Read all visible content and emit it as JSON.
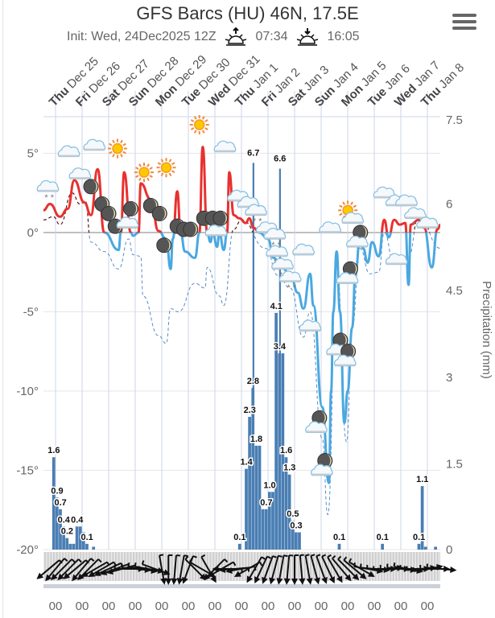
{
  "header": {
    "title": "GFS Barcs (HU) 46N, 17.5E",
    "init": "Init: Wed, 24Dec2025 12Z",
    "sunrise": "07:34",
    "sunset": "16:05",
    "sunrise_icon": "sunrise-icon",
    "sunset_icon": "sunset-icon",
    "menu_icon": "hamburger-menu-icon"
  },
  "chart_data": {
    "type": "line",
    "title": "GFS Barcs (HU) 46N, 17.5E",
    "subtitle": "Init: Wed, 24Dec2025 12Z",
    "x_axis": {
      "days": [
        {
          "wd": "Thu",
          "date": "Dec 25"
        },
        {
          "wd": "Fri",
          "date": "Dec 26"
        },
        {
          "wd": "Sat",
          "date": "Dec 27"
        },
        {
          "wd": "Sun",
          "date": "Dec 28"
        },
        {
          "wd": "Mon",
          "date": "Dec 29"
        },
        {
          "wd": "Tue",
          "date": "Dec 30"
        },
        {
          "wd": "Wed",
          "date": "Dec 31"
        },
        {
          "wd": "Thu",
          "date": "Jan 1"
        },
        {
          "wd": "Fri",
          "date": "Jan 2"
        },
        {
          "wd": "Sat",
          "date": "Jan 3"
        },
        {
          "wd": "Sun",
          "date": "Jan 4"
        },
        {
          "wd": "Mon",
          "date": "Jan 5"
        },
        {
          "wd": "Tue",
          "date": "Jan 6"
        },
        {
          "wd": "Wed",
          "date": "Jan 7"
        },
        {
          "wd": "Thu",
          "date": "Jan 8"
        }
      ],
      "hour_label": "00",
      "range": [
        "2025-12-24T13",
        "2026-01-08T12"
      ]
    },
    "y_left": {
      "ticks": [
        "5°",
        "0°",
        "-5°",
        "-10°",
        "-15°",
        "-20°"
      ],
      "values": [
        5,
        0,
        -5,
        -10,
        -15,
        -20
      ],
      "range": [
        -20,
        7.5
      ]
    },
    "y_right": {
      "title": "Precipitation (mm)",
      "ticks": [
        "7.5",
        "6",
        "4.5",
        "3",
        "1.5",
        "0"
      ],
      "values": [
        7.5,
        6,
        4.5,
        3,
        1.5,
        0
      ],
      "range": [
        0,
        7.5
      ]
    },
    "colors": {
      "temp_above_zero": "#e8312f",
      "temp_below_zero": "#4aa8e0",
      "dew_above_zero": "#5a1a1a",
      "dew_below_zero": "#5b8cc4",
      "precip": "#4a7eb3",
      "grid": "#e6e6e6",
      "day_grid": "#ccd6eb"
    },
    "temperature": [
      [
        "2025-12-24T13",
        1.4
      ],
      [
        "2025-12-24T19",
        1.8
      ],
      [
        "2025-12-25T04",
        1.0
      ],
      [
        "2025-12-25T11",
        1.5
      ],
      [
        "2025-12-25T17",
        3.3
      ],
      [
        "2025-12-26T02",
        1.9
      ],
      [
        "2025-12-26T08",
        1.1
      ],
      [
        "2025-12-26T14",
        4.0
      ],
      [
        "2025-12-26T20",
        0
      ],
      [
        "2025-12-27T09",
        -1.1
      ],
      [
        "2025-12-27T11",
        0
      ],
      [
        "2025-12-27T14",
        3.8
      ],
      [
        "2025-12-27T20",
        0
      ],
      [
        "2025-12-27T22",
        -0.2
      ],
      [
        "2025-12-28T03",
        0
      ],
      [
        "2025-12-28T05",
        3.1
      ],
      [
        "2025-12-28T14",
        2.1
      ],
      [
        "2025-12-28T21",
        0.1
      ],
      [
        "2025-12-29T04",
        -0.4
      ],
      [
        "2025-12-29T08",
        -2.3
      ],
      [
        "2025-12-29T10",
        -0.4
      ],
      [
        "2025-12-29T14",
        2.6
      ],
      [
        "2025-12-29T17",
        0
      ],
      [
        "2025-12-29T21",
        -1.2
      ],
      [
        "2025-12-30T06",
        -1.6
      ],
      [
        "2025-12-30T10",
        0
      ],
      [
        "2025-12-30T13",
        5.4
      ],
      [
        "2025-12-30T17",
        0
      ],
      [
        "2025-12-30T20",
        -0.6
      ],
      [
        "2025-12-30T22",
        0
      ],
      [
        "2025-12-31T02",
        -0.9
      ],
      [
        "2025-12-31T04",
        0
      ],
      [
        "2025-12-31T08",
        -1.1
      ],
      [
        "2025-12-31T11",
        0
      ],
      [
        "2025-12-31T13",
        3.8
      ],
      [
        "2025-12-31T17",
        1.1
      ],
      [
        "2025-12-31T22",
        0.9
      ],
      [
        "2026-01-01T04",
        0.6
      ],
      [
        "2026-01-01T07",
        0.9
      ],
      [
        "2026-01-01T11",
        0.3
      ],
      [
        "2026-01-01T16",
        0
      ],
      [
        "2026-01-02T00",
        -0.4
      ],
      [
        "2026-01-02T05",
        -1.6
      ],
      [
        "2026-01-02T12",
        -2.2
      ],
      [
        "2026-01-02T20",
        -2.6
      ],
      [
        "2026-01-03T03",
        -3.8
      ],
      [
        "2026-01-03T08",
        -4.8
      ],
      [
        "2026-01-03T14",
        -2.6
      ],
      [
        "2026-01-03T17",
        -4.6
      ],
      [
        "2026-01-04T01",
        -11
      ],
      [
        "2026-01-04T07",
        -15.8
      ],
      [
        "2026-01-04T09",
        -10
      ],
      [
        "2026-01-04T11",
        -5
      ],
      [
        "2026-01-04T14",
        -1.2
      ],
      [
        "2026-01-04T17",
        -5
      ],
      [
        "2026-01-04T21",
        -12
      ],
      [
        "2026-01-05T00",
        -10
      ],
      [
        "2026-01-05T04",
        -6
      ],
      [
        "2026-01-05T07",
        -2.6
      ],
      [
        "2026-01-05T11",
        -0.4
      ],
      [
        "2026-01-05T14",
        -1
      ],
      [
        "2026-01-05T18",
        -1.9
      ],
      [
        "2026-01-05T22",
        -0.6
      ],
      [
        "2026-01-06T04",
        -1.5
      ],
      [
        "2026-01-06T09",
        0.8
      ],
      [
        "2026-01-06T13",
        -0.3
      ],
      [
        "2026-01-06T18",
        0.8
      ],
      [
        "2026-01-06T23",
        0.5
      ],
      [
        "2026-01-07T04",
        0.6
      ],
      [
        "2026-01-07T07",
        -3.3
      ],
      [
        "2026-01-07T09",
        0.5
      ],
      [
        "2026-01-07T16",
        0.8
      ],
      [
        "2026-01-07T21",
        0.3
      ],
      [
        "2026-01-08T04",
        -2.2
      ],
      [
        "2026-01-08T09",
        0.2
      ],
      [
        "2026-01-08T12",
        0.5
      ]
    ],
    "dewpoint": [
      [
        "2025-12-24T13",
        0.8
      ],
      [
        "2025-12-24T22",
        1.0
      ],
      [
        "2025-12-25T04",
        0.5
      ],
      [
        "2025-12-25T15",
        2.5
      ],
      [
        "2025-12-25T22",
        1.8
      ],
      [
        "2025-12-26T03",
        2.0
      ],
      [
        "2025-12-26T08",
        -0.6
      ],
      [
        "2025-12-26T20",
        -1.2
      ],
      [
        "2025-12-27T09",
        -2.3
      ],
      [
        "2025-12-27T18",
        -0.4
      ],
      [
        "2025-12-27T22",
        -1.4
      ],
      [
        "2025-12-28T05",
        -1.5
      ],
      [
        "2025-12-28T07",
        -4
      ],
      [
        "2025-12-28T21",
        -6.5
      ],
      [
        "2025-12-29T04",
        -7
      ],
      [
        "2025-12-29T08",
        -4.8
      ],
      [
        "2025-12-29T15",
        -5
      ],
      [
        "2025-12-30T06",
        -3.2
      ],
      [
        "2025-12-30T15",
        -3.5
      ],
      [
        "2025-12-30T17",
        -2.2
      ],
      [
        "2025-12-31T04",
        -4
      ],
      [
        "2025-12-31T08",
        -4.6
      ],
      [
        "2025-12-31T17",
        0.2
      ],
      [
        "2026-01-01T00",
        0.8
      ],
      [
        "2026-01-01T22",
        -1
      ],
      [
        "2026-01-02T09",
        -2.7
      ],
      [
        "2026-01-02T20",
        -3.5
      ],
      [
        "2026-01-03T08",
        -6.6
      ],
      [
        "2026-01-03T14",
        -5
      ],
      [
        "2026-01-04T01",
        -13
      ],
      [
        "2026-01-04T06",
        -17.8
      ],
      [
        "2026-01-04T14",
        -2
      ],
      [
        "2026-01-04T23",
        -13.2
      ],
      [
        "2026-01-05T04",
        -6
      ],
      [
        "2026-01-05T11",
        -1
      ],
      [
        "2026-01-05T20",
        -2.6
      ],
      [
        "2026-01-06T04",
        -2.5
      ],
      [
        "2026-01-06T09",
        0
      ],
      [
        "2026-01-06T18",
        -2
      ],
      [
        "2026-01-07T02",
        -1.8
      ],
      [
        "2026-01-07T07",
        -1.5
      ],
      [
        "2026-01-07T16",
        1
      ],
      [
        "2026-01-08T12",
        -1
      ]
    ],
    "precipitation": [
      {
        "t": "2025-12-24T21",
        "mm": 1.6,
        "label": true
      },
      {
        "t": "2025-12-25T00",
        "mm": 0.9,
        "label": true
      },
      {
        "t": "2025-12-25T03",
        "mm": 0.7,
        "label": true
      },
      {
        "t": "2025-12-25T06",
        "mm": 0.4,
        "label": true
      },
      {
        "t": "2025-12-25T09",
        "mm": 0.2,
        "label": true
      },
      {
        "t": "2025-12-25T12",
        "mm": 0.1
      },
      {
        "t": "2025-12-25T15",
        "mm": 0.1
      },
      {
        "t": "2025-12-25T18",
        "mm": 0.4,
        "label": true
      },
      {
        "t": "2025-12-25T21",
        "mm": 0.4
      },
      {
        "t": "2025-12-26T00",
        "mm": 0.3
      },
      {
        "t": "2025-12-26T03",
        "mm": 0.1,
        "label": true
      },
      {
        "t": "2025-12-26T09",
        "mm": 0.05
      },
      {
        "t": "2025-12-31T21",
        "mm": 0.1,
        "label": true
      },
      {
        "t": "2026-01-01T03",
        "mm": 1.4,
        "label": true
      },
      {
        "t": "2026-01-01T06",
        "mm": 2.3,
        "label": true
      },
      {
        "t": "2026-01-01T09",
        "mm": 2.8,
        "label": true
      },
      {
        "t": "2026-01-01T12",
        "mm": 1.8,
        "label": true
      },
      {
        "t": "2026-01-01T15",
        "mm": 1.8
      },
      {
        "t": "2026-01-01T18",
        "mm": 0.7
      },
      {
        "t": "2026-01-01T21",
        "mm": 0.7,
        "label": true
      },
      {
        "t": "2026-01-02T00",
        "mm": 1.0,
        "label": true
      },
      {
        "t": "2026-01-02T03",
        "mm": 1.0
      },
      {
        "t": "2026-01-02T06",
        "mm": 4.1,
        "label": true
      },
      {
        "t": "2026-01-02T09",
        "mm": 3.4,
        "label": true
      },
      {
        "t": "2026-01-02T12",
        "mm": 3.4
      },
      {
        "t": "2026-01-02T15",
        "mm": 1.6,
        "label": true
      },
      {
        "t": "2026-01-02T18",
        "mm": 1.3,
        "label": true
      },
      {
        "t": "2026-01-02T21",
        "mm": 0.5,
        "label": true
      },
      {
        "t": "2026-01-03T00",
        "mm": 0.3,
        "label": true
      },
      {
        "t": "2026-01-03T03",
        "mm": 0.3
      },
      {
        "t": "2026-01-04T15",
        "mm": 0.1,
        "label": true
      },
      {
        "t": "2026-01-06T06",
        "mm": 0.1,
        "label": true
      },
      {
        "t": "2026-01-07T15",
        "mm": 0.1,
        "label": true
      },
      {
        "t": "2026-01-07T18",
        "mm": 1.1,
        "label": true
      },
      {
        "t": "2026-01-07T21",
        "mm": 0.05
      },
      {
        "t": "2026-01-08T06",
        "mm": 0.05
      }
    ],
    "precipitation_peaks": [
      {
        "t": "2026-01-01T10",
        "mm": 6.7,
        "label": true
      },
      {
        "t": "2026-01-02T10",
        "mm": 6.6,
        "label": true
      }
    ],
    "weather_symbols": [
      {
        "t": "2025-12-24T17",
        "temp": 2.9,
        "icon": "snow-cloud"
      },
      {
        "t": "2025-12-25T12",
        "temp": 5.1,
        "icon": "cloud"
      },
      {
        "t": "2025-12-26T11",
        "temp": 5.5,
        "icon": "cloud"
      },
      {
        "t": "2025-12-27T08",
        "temp": 5.3,
        "icon": "sun"
      },
      {
        "t": "2025-12-25T22",
        "temp": 3.7,
        "icon": "cloud"
      },
      {
        "t": "2025-12-26T08",
        "temp": 2.9,
        "icon": "moon"
      },
      {
        "t": "2025-12-26T18",
        "temp": 1.8,
        "icon": "moon"
      },
      {
        "t": "2025-12-27T00",
        "temp": 1.2,
        "icon": "moon"
      },
      {
        "t": "2025-12-27T06",
        "temp": 0.4,
        "icon": "moon"
      },
      {
        "t": "2025-12-27T20",
        "temp": 1.5,
        "icon": "moon"
      },
      {
        "t": "2025-12-27T17",
        "temp": 0.6,
        "icon": "cloud"
      },
      {
        "t": "2025-12-28T08",
        "temp": 3.8,
        "icon": "sun"
      },
      {
        "t": "2025-12-29T04",
        "temp": 4.1,
        "icon": "sun"
      },
      {
        "t": "2025-12-30T10",
        "temp": 6.8,
        "icon": "sun"
      },
      {
        "t": "2025-12-28T14",
        "temp": 1.7,
        "icon": "moon"
      },
      {
        "t": "2025-12-28T22",
        "temp": 1.2,
        "icon": "moon"
      },
      {
        "t": "2025-12-29T02",
        "temp": -0.8,
        "icon": "moon"
      },
      {
        "t": "2025-12-29T14",
        "temp": 0.4,
        "icon": "moon"
      },
      {
        "t": "2025-12-29T20",
        "temp": 0.2,
        "icon": "moon"
      },
      {
        "t": "2025-12-30T02",
        "temp": 0.2,
        "icon": "moon"
      },
      {
        "t": "2025-12-30T14",
        "temp": 0.9,
        "icon": "moon"
      },
      {
        "t": "2025-12-30T22",
        "temp": 0.9,
        "icon": "moon"
      },
      {
        "t": "2025-12-31T05",
        "temp": 0.9,
        "icon": "moon"
      },
      {
        "t": "2025-12-31T01",
        "temp": 0.1,
        "icon": "cloud"
      },
      {
        "t": "2025-12-31T09",
        "temp": 5.4,
        "icon": "cloud"
      },
      {
        "t": "2025-12-31T21",
        "temp": 2.3,
        "icon": "cloud"
      },
      {
        "t": "2026-01-01T06",
        "temp": 1.9,
        "icon": "snow-cloud"
      },
      {
        "t": "2026-01-01T13",
        "temp": 1.4,
        "icon": "snow-cloud"
      },
      {
        "t": "2026-01-01T23",
        "temp": 0.3,
        "icon": "snow-cloud"
      },
      {
        "t": "2026-01-02T06",
        "temp": -0.1,
        "icon": "snow-cloud"
      },
      {
        "t": "2026-01-02T08",
        "temp": -1.2,
        "icon": "snow-cloud"
      },
      {
        "t": "2026-01-02T13",
        "temp": -2.0,
        "icon": "snow-cloud"
      },
      {
        "t": "2026-01-02T20",
        "temp": -2.8,
        "icon": "snow-cloud"
      },
      {
        "t": "2026-01-03T08",
        "temp": -1.1,
        "icon": "cloud"
      },
      {
        "t": "2026-01-03T14",
        "temp": -5.9,
        "icon": "cloud"
      },
      {
        "t": "2026-01-04T08",
        "temp": 0.3,
        "icon": "cloud"
      },
      {
        "t": "2026-01-05T03",
        "temp": 1.1,
        "icon": "sun-cloud"
      },
      {
        "t": "2026-01-03T21",
        "temp": -12.1,
        "icon": "moon-cloud"
      },
      {
        "t": "2026-01-04T02",
        "temp": -14.8,
        "icon": "moon-cloud"
      },
      {
        "t": "2026-01-04T16",
        "temp": -7.2,
        "icon": "moon-cloud"
      },
      {
        "t": "2026-01-04T23",
        "temp": -7.9,
        "icon": "moon-cloud"
      },
      {
        "t": "2026-01-05T10",
        "temp": -0.4,
        "icon": "moon-cloud"
      },
      {
        "t": "2026-01-05T01",
        "temp": -2.7,
        "icon": "moon-cloud"
      },
      {
        "t": "2026-01-06T09",
        "temp": 2.5,
        "icon": "cloud"
      },
      {
        "t": "2026-01-06T20",
        "temp": 2.0,
        "icon": "cloud"
      },
      {
        "t": "2026-01-07T05",
        "temp": 2.0,
        "icon": "cloud"
      },
      {
        "t": "2026-01-06T20",
        "temp": -1.7,
        "icon": "cloud"
      },
      {
        "t": "2026-01-07T13",
        "temp": 1.2,
        "icon": "snow-cloud"
      },
      {
        "t": "2026-01-08T00",
        "temp": 0.6,
        "icon": "cloud"
      }
    ],
    "wind_direction_from_deg": [
      50,
      40,
      45,
      45,
      50,
      40,
      45,
      60,
      60,
      65,
      70,
      75,
      270,
      275,
      280,
      280,
      290,
      350,
      0,
      5,
      10,
      20,
      315,
      300,
      330,
      45,
      60,
      90,
      85,
      80,
      60,
      30,
      25,
      20,
      15,
      10,
      5,
      0,
      355,
      350,
      345,
      340,
      335,
      330,
      320,
      315,
      310,
      300,
      280,
      275,
      270,
      265,
      270,
      275,
      280,
      270,
      265,
      260,
      270,
      275
    ],
    "wind_start": "2025-12-24T18",
    "wind_step_hours": 6
  }
}
